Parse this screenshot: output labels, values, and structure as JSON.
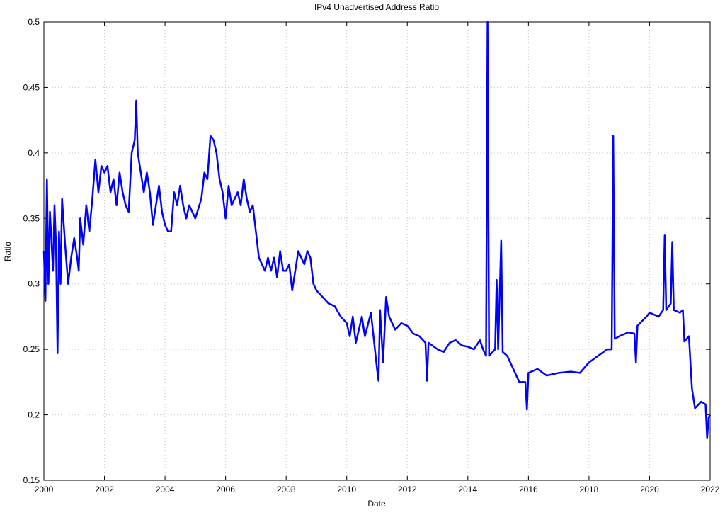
{
  "chart_data": {
    "type": "line",
    "title": "IPv4 Unadvertised Address Ratio",
    "x_label": "Date",
    "y_label": "Ratio",
    "xlim": [
      2000,
      2022
    ],
    "xticks": [
      2000,
      2002,
      2004,
      2006,
      2008,
      2010,
      2012,
      2014,
      2016,
      2018,
      2020,
      2022
    ],
    "ylim": [
      0.15,
      0.5
    ],
    "yticks": [
      0.15,
      0.2,
      0.25,
      0.3,
      0.35,
      0.4,
      0.45,
      0.5
    ],
    "grid": true,
    "series": [
      {
        "color": "#0000ff",
        "x": [
          2000.0,
          2000.05,
          2000.1,
          2000.15,
          2000.2,
          2000.3,
          2000.35,
          2000.4,
          2000.45,
          2000.5,
          2000.55,
          2000.6,
          2000.7,
          2000.8,
          2000.9,
          2001.0,
          2001.1,
          2001.15,
          2001.2,
          2001.3,
          2001.4,
          2001.5,
          2001.6,
          2001.7,
          2001.8,
          2001.9,
          2002.0,
          2002.1,
          2002.2,
          2002.3,
          2002.4,
          2002.5,
          2002.6,
          2002.7,
          2002.8,
          2002.9,
          2003.0,
          2003.05,
          2003.1,
          2003.2,
          2003.3,
          2003.4,
          2003.5,
          2003.6,
          2003.7,
          2003.8,
          2003.9,
          2004.0,
          2004.1,
          2004.2,
          2004.3,
          2004.4,
          2004.5,
          2004.6,
          2004.7,
          2004.8,
          2004.9,
          2005.0,
          2005.2,
          2005.3,
          2005.4,
          2005.5,
          2005.6,
          2005.7,
          2005.8,
          2005.9,
          2006.0,
          2006.1,
          2006.2,
          2006.3,
          2006.4,
          2006.5,
          2006.6,
          2006.7,
          2006.8,
          2006.9,
          2007.0,
          2007.1,
          2007.2,
          2007.3,
          2007.4,
          2007.5,
          2007.6,
          2007.7,
          2007.8,
          2007.9,
          2008.0,
          2008.1,
          2008.2,
          2008.3,
          2008.4,
          2008.5,
          2008.6,
          2008.7,
          2008.8,
          2008.9,
          2009.0,
          2009.2,
          2009.4,
          2009.6,
          2009.8,
          2010.0,
          2010.1,
          2010.2,
          2010.3,
          2010.5,
          2010.6,
          2010.8,
          2011.0,
          2011.05,
          2011.1,
          2011.2,
          2011.3,
          2011.4,
          2011.6,
          2011.8,
          2012.0,
          2012.2,
          2012.4,
          2012.6,
          2012.65,
          2012.7,
          2013.0,
          2013.2,
          2013.4,
          2013.6,
          2013.8,
          2014.0,
          2014.2,
          2014.4,
          2014.5,
          2014.6,
          2014.65,
          2014.7,
          2014.9,
          2014.95,
          2015.0,
          2015.1,
          2015.15,
          2015.3,
          2015.5,
          2015.7,
          2015.9,
          2015.95,
          2016.0,
          2016.3,
          2016.6,
          2017.0,
          2017.4,
          2017.7,
          2018.0,
          2018.3,
          2018.6,
          2018.75,
          2018.8,
          2018.85,
          2019.0,
          2019.3,
          2019.5,
          2019.55,
          2019.6,
          2019.9,
          2020.0,
          2020.3,
          2020.45,
          2020.5,
          2020.55,
          2020.7,
          2020.75,
          2020.8,
          2021.0,
          2021.1,
          2021.15,
          2021.3,
          2021.4,
          2021.5,
          2021.7,
          2021.85,
          2021.9,
          2021.95,
          2022.0
        ],
        "values": [
          0.325,
          0.287,
          0.38,
          0.3,
          0.355,
          0.31,
          0.36,
          0.33,
          0.247,
          0.34,
          0.3,
          0.365,
          0.33,
          0.3,
          0.32,
          0.335,
          0.32,
          0.31,
          0.35,
          0.33,
          0.36,
          0.34,
          0.365,
          0.395,
          0.37,
          0.39,
          0.385,
          0.39,
          0.37,
          0.38,
          0.36,
          0.385,
          0.37,
          0.36,
          0.355,
          0.4,
          0.41,
          0.44,
          0.4,
          0.385,
          0.37,
          0.385,
          0.37,
          0.345,
          0.36,
          0.375,
          0.355,
          0.345,
          0.34,
          0.34,
          0.37,
          0.36,
          0.375,
          0.36,
          0.35,
          0.36,
          0.355,
          0.35,
          0.365,
          0.385,
          0.38,
          0.413,
          0.41,
          0.4,
          0.38,
          0.37,
          0.35,
          0.375,
          0.36,
          0.365,
          0.37,
          0.36,
          0.38,
          0.365,
          0.355,
          0.36,
          0.34,
          0.32,
          0.315,
          0.31,
          0.32,
          0.31,
          0.32,
          0.305,
          0.325,
          0.31,
          0.31,
          0.315,
          0.295,
          0.31,
          0.325,
          0.32,
          0.315,
          0.325,
          0.32,
          0.3,
          0.295,
          0.29,
          0.285,
          0.283,
          0.275,
          0.27,
          0.26,
          0.275,
          0.255,
          0.275,
          0.26,
          0.278,
          0.235,
          0.226,
          0.28,
          0.24,
          0.29,
          0.275,
          0.265,
          0.27,
          0.268,
          0.262,
          0.26,
          0.255,
          0.226,
          0.255,
          0.25,
          0.248,
          0.255,
          0.257,
          0.253,
          0.252,
          0.25,
          0.257,
          0.25,
          0.245,
          0.5,
          0.245,
          0.25,
          0.303,
          0.25,
          0.333,
          0.248,
          0.245,
          0.235,
          0.225,
          0.225,
          0.204,
          0.232,
          0.235,
          0.23,
          0.232,
          0.233,
          0.232,
          0.24,
          0.245,
          0.25,
          0.25,
          0.413,
          0.258,
          0.26,
          0.263,
          0.262,
          0.24,
          0.268,
          0.275,
          0.278,
          0.275,
          0.28,
          0.337,
          0.28,
          0.285,
          0.332,
          0.28,
          0.278,
          0.28,
          0.256,
          0.26,
          0.22,
          0.205,
          0.21,
          0.208,
          0.182,
          0.198,
          0.2
        ]
      }
    ]
  }
}
